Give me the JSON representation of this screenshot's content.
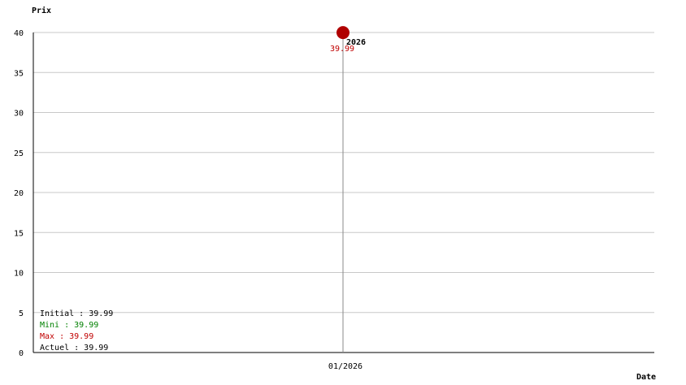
{
  "chart_data": {
    "type": "line",
    "ylabel": "Prix",
    "xlabel": "Date",
    "ylim": [
      0,
      40
    ],
    "yticks": [
      0,
      5,
      10,
      15,
      20,
      25,
      30,
      35,
      40
    ],
    "xticks": [
      "01/2026"
    ],
    "grid": true,
    "points": [
      {
        "x": "01/2026",
        "y": 39.99,
        "label": "39.99",
        "year_label": "2026"
      }
    ],
    "stats": [
      {
        "label": "Initial : 39.99",
        "color": "#000000"
      },
      {
        "label": "Mini : 39.99",
        "color": "#008000"
      },
      {
        "label": "Max : 39.99",
        "color": "#c00000"
      },
      {
        "label": "Actuel : 39.99",
        "color": "#000000"
      }
    ],
    "colors": {
      "point": "#b00000",
      "label": "#c00000",
      "grid": "#c8c8c8"
    }
  }
}
